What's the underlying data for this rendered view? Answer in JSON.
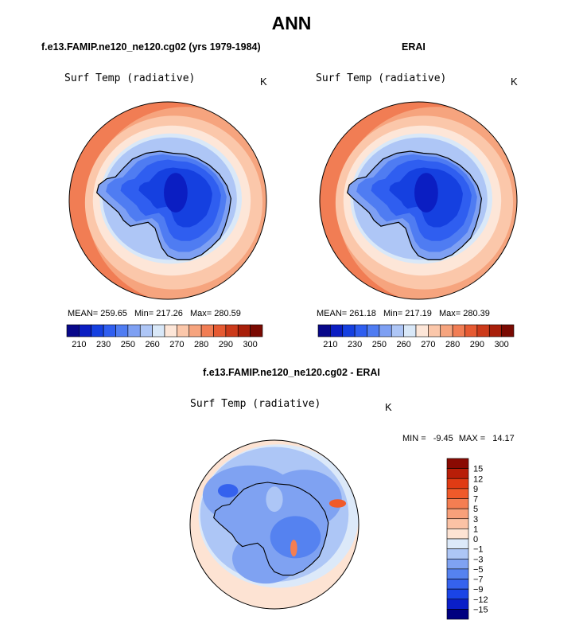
{
  "page": {
    "title": "ANN",
    "panel_top_left_title": "f.e13.FAMIP.ne120_ne120.cg02 (yrs 1979-1984)",
    "panel_top_right_title": "ERAI",
    "panel_bottom_title": "f.e13.FAMIP.ne120_ne120.cg02 - ERAI"
  },
  "colors": {
    "abs_scale": [
      "#08088a",
      "#0b1ec2",
      "#1540e0",
      "#2f5ef0",
      "#4f7cf2",
      "#7ea0f3",
      "#aec6f6",
      "#d9e8f8",
      "#fde6d8",
      "#fbc7aa",
      "#f6a47e",
      "#f17d54",
      "#e65a32",
      "#cc3a1a",
      "#a81f0a",
      "#7a0a02"
    ],
    "diff_scale": [
      "#000080",
      "#0a1ec8",
      "#1a44e6",
      "#3562ee",
      "#5582f0",
      "#7fa2f2",
      "#adc6f6",
      "#dce9f9",
      "#fde3d3",
      "#fbc2a5",
      "#f8a07a",
      "#f47e52",
      "#f05a2a",
      "#e03b14",
      "#b81e08",
      "#8a0a02"
    ]
  },
  "chart_data": [
    {
      "type": "heatmap",
      "projection": "south-polar-stereographic",
      "title": "f.e13.FAMIP.ne120_ne120.cg02 (yrs 1979-1984)",
      "variable": "Surf Temp (radiative)",
      "units": "K",
      "stats": {
        "mean_label": "MEAN=",
        "mean": "259.65",
        "min_label": "Min=",
        "min": "217.26",
        "max_label": "Max=",
        "max": "280.59"
      },
      "colorbar_ticks": [
        "210",
        "230",
        "250",
        "260",
        "270",
        "280",
        "290",
        "300"
      ]
    },
    {
      "type": "heatmap",
      "projection": "south-polar-stereographic",
      "title": "ERAI",
      "variable": "Surf Temp (radiative)",
      "units": "K",
      "stats": {
        "mean_label": "MEAN=",
        "mean": "261.18",
        "min_label": "Min=",
        "min": "217.19",
        "max_label": "Max=",
        "max": "280.39"
      },
      "colorbar_ticks": [
        "210",
        "230",
        "250",
        "260",
        "270",
        "280",
        "290",
        "300"
      ]
    },
    {
      "type": "heatmap",
      "projection": "south-polar-stereographic",
      "title": "f.e13.FAMIP.ne120_ne120.cg02 - ERAI",
      "variable": "Surf Temp (radiative)",
      "units": "K",
      "stats": {
        "min_label": "MIN =",
        "min": "-9.45",
        "max_label": "MAX =",
        "max": "14.17"
      },
      "colorbar_ticks": [
        "15",
        "12",
        "9",
        "7",
        "5",
        "3",
        "1",
        "0",
        "−1",
        "−3",
        "−5",
        "−7",
        "−9",
        "−12",
        "−15"
      ]
    }
  ]
}
